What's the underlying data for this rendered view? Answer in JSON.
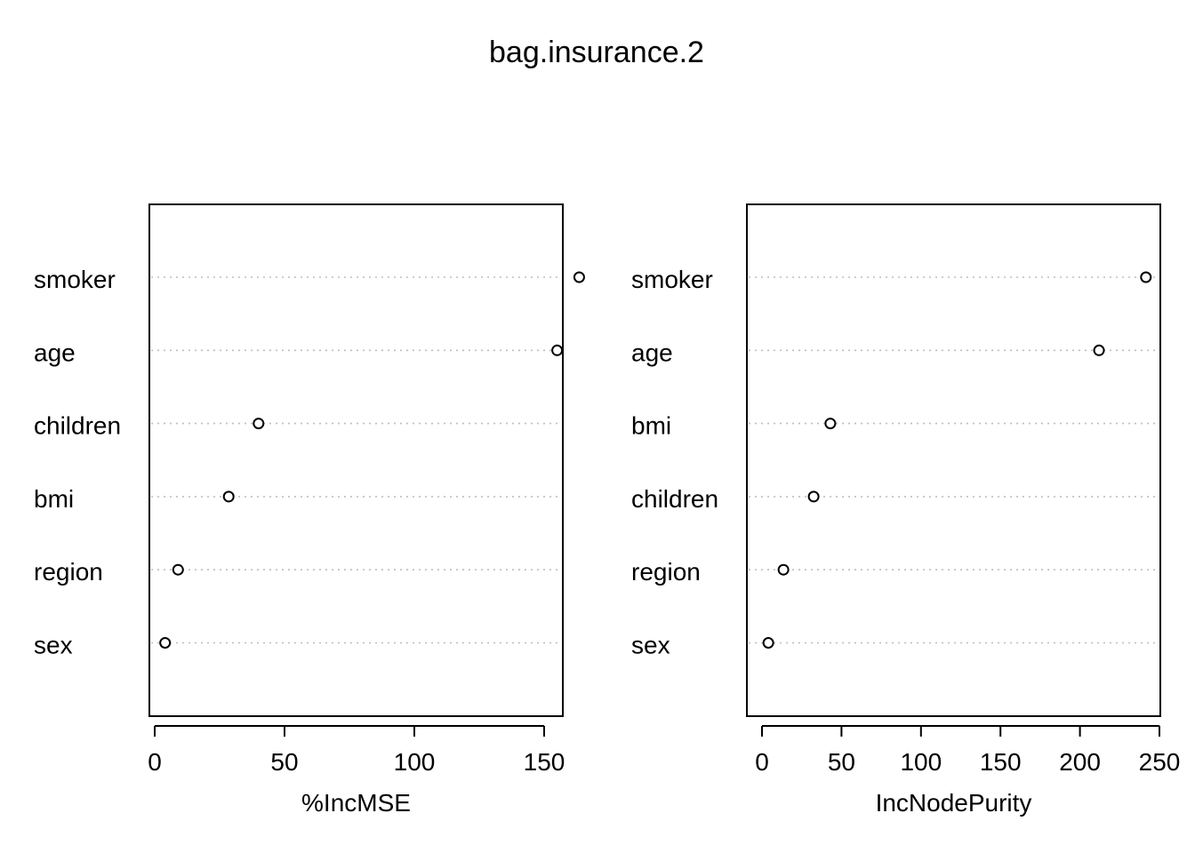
{
  "figure": {
    "title": "bag.insurance.2"
  },
  "chart_data": [
    {
      "type": "scatter",
      "subtype": "dotchart",
      "xlabel": "%IncMSE",
      "ylabel": "",
      "categories": [
        "smoker",
        "age",
        "children",
        "bmi",
        "region",
        "sex"
      ],
      "values": [
        163.5,
        155,
        40,
        28.5,
        9,
        4
      ],
      "xlim": [
        0,
        170
      ],
      "xticks": [
        0,
        50,
        100,
        150
      ],
      "grid": "horizontal dotted",
      "marker": "open circle",
      "colors": {
        "guide": "#bebebe",
        "axis": "#000000",
        "marker": "#000000"
      }
    },
    {
      "type": "scatter",
      "subtype": "dotchart",
      "xlabel": "IncNodePurity",
      "ylabel": "",
      "categories": [
        "smoker",
        "age",
        "bmi",
        "children",
        "region",
        "sex"
      ],
      "values": [
        241.5,
        212,
        43,
        32.5,
        13.5,
        4
      ],
      "xlim": [
        0,
        250
      ],
      "xticks": [
        0,
        50,
        100,
        150,
        200,
        250
      ],
      "grid": "horizontal dotted",
      "marker": "open circle",
      "colors": {
        "guide": "#bebebe",
        "axis": "#000000",
        "marker": "#000000"
      }
    }
  ]
}
